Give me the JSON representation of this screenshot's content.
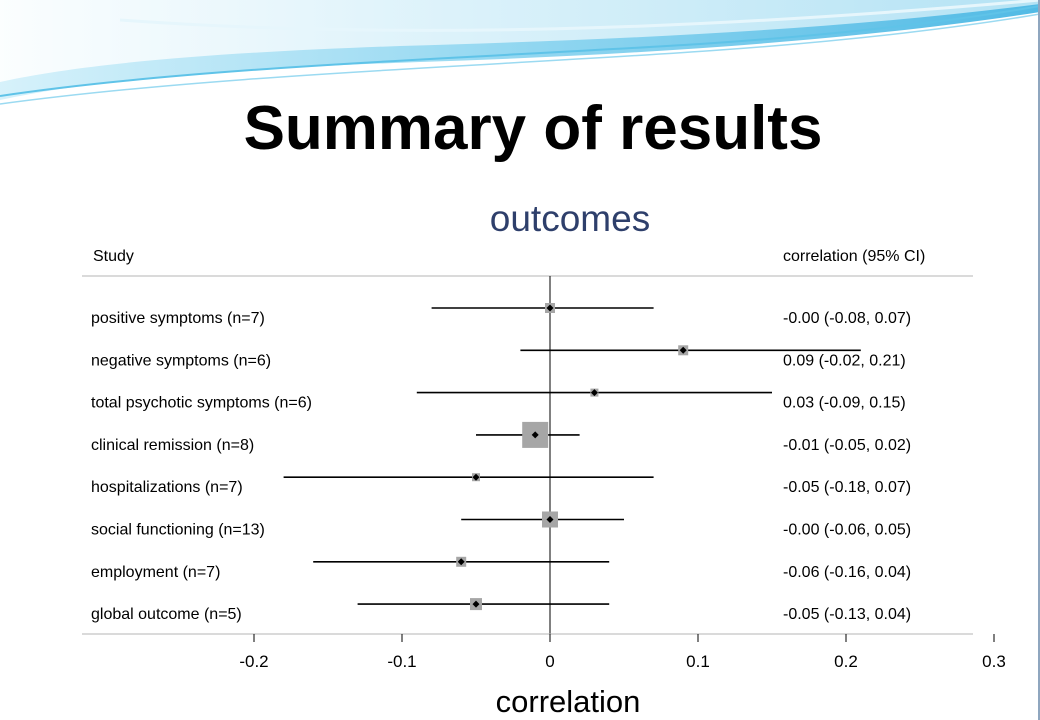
{
  "slide": {
    "title": "Summary of results",
    "subtitle": "outcomes"
  },
  "chart_data": {
    "type": "forest",
    "column_headers": {
      "left": "Study",
      "right": "correlation (95% CI)"
    },
    "xlabel": "correlation",
    "xlim": [
      -0.2,
      0.3
    ],
    "xticks": [
      -0.2,
      -0.1,
      0,
      0.1,
      0.2,
      0.3
    ],
    "xtick_labels": [
      "-0.2",
      "-0.1",
      "0",
      "0.1",
      "0.2",
      "0.3"
    ],
    "reference_line": 0,
    "rows": [
      {
        "label": "positive symptoms (n=7)",
        "estimate": -0.0,
        "lower": -0.08,
        "upper": 0.07,
        "text": "-0.00 (-0.08, 0.07)"
      },
      {
        "label": "negative symptoms (n=6)",
        "estimate": 0.09,
        "lower": -0.02,
        "upper": 0.21,
        "text": "0.09 (-0.02, 0.21)"
      },
      {
        "label": "total psychotic symptoms (n=6)",
        "estimate": 0.03,
        "lower": -0.09,
        "upper": 0.15,
        "text": "0.03 (-0.09, 0.15)"
      },
      {
        "label": "clinical remission (n=8)",
        "estimate": -0.01,
        "lower": -0.05,
        "upper": 0.02,
        "text": "-0.01 (-0.05, 0.02)"
      },
      {
        "label": "hospitalizations (n=7)",
        "estimate": -0.05,
        "lower": -0.18,
        "upper": 0.07,
        "text": "-0.05 (-0.18, 0.07)"
      },
      {
        "label": "social functioning (n=13)",
        "estimate": -0.0,
        "lower": -0.06,
        "upper": 0.05,
        "text": "-0.00 (-0.06, 0.05)"
      },
      {
        "label": "employment (n=7)",
        "estimate": -0.06,
        "lower": -0.16,
        "upper": 0.04,
        "text": "-0.06 (-0.16, 0.04)"
      },
      {
        "label": "global outcome (n=5)",
        "estimate": -0.05,
        "lower": -0.13,
        "upper": 0.04,
        "text": "-0.05 (-0.13, 0.04)"
      }
    ],
    "colors": {
      "box": "#a6a6a6",
      "line": "#000000",
      "rule": "#b4b4b4"
    }
  }
}
